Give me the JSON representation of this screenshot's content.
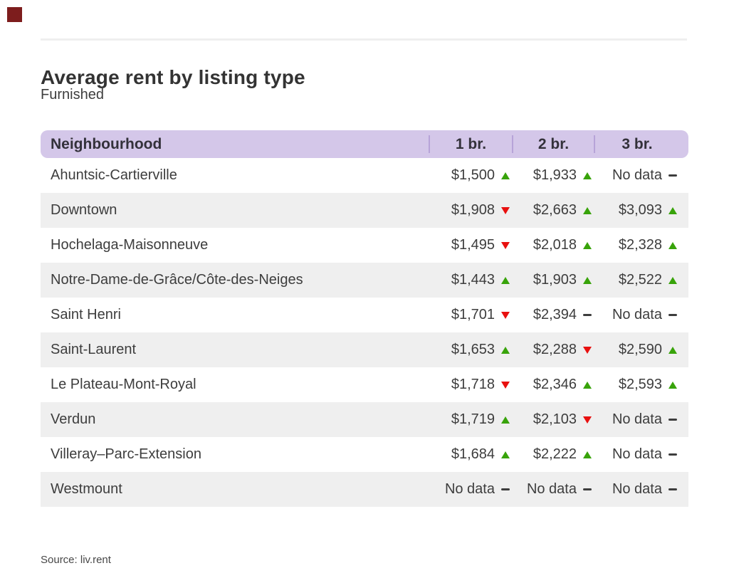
{
  "chart_data": {
    "type": "table",
    "title": "Average rent by listing type",
    "subtitle": "Furnished",
    "columns": [
      "Neighbourhood",
      "1 br.",
      "2 br.",
      "3 br."
    ],
    "no_data_text": "No data",
    "rows": [
      {
        "neighbourhood": "Ahuntsic-Cartierville",
        "values": [
          {
            "amount": "$1,500",
            "trend": "up"
          },
          {
            "amount": "$1,933",
            "trend": "up"
          },
          {
            "amount": "No data",
            "trend": "flat"
          }
        ]
      },
      {
        "neighbourhood": "Downtown",
        "values": [
          {
            "amount": "$1,908",
            "trend": "down"
          },
          {
            "amount": "$2,663",
            "trend": "up"
          },
          {
            "amount": "$3,093",
            "trend": "up"
          }
        ]
      },
      {
        "neighbourhood": "Hochelaga-Maisonneuve",
        "values": [
          {
            "amount": "$1,495",
            "trend": "down"
          },
          {
            "amount": "$2,018",
            "trend": "up"
          },
          {
            "amount": "$2,328",
            "trend": "up"
          }
        ]
      },
      {
        "neighbourhood": "Notre-Dame-de-Grâce/Côte-des-Neiges",
        "values": [
          {
            "amount": "$1,443",
            "trend": "up"
          },
          {
            "amount": "$1,903",
            "trend": "up"
          },
          {
            "amount": "$2,522",
            "trend": "up"
          }
        ]
      },
      {
        "neighbourhood": "Saint Henri",
        "values": [
          {
            "amount": "$1,701",
            "trend": "down"
          },
          {
            "amount": "$2,394",
            "trend": "flat"
          },
          {
            "amount": "No data",
            "trend": "flat"
          }
        ]
      },
      {
        "neighbourhood": "Saint-Laurent",
        "values": [
          {
            "amount": "$1,653",
            "trend": "up"
          },
          {
            "amount": "$2,288",
            "trend": "down"
          },
          {
            "amount": "$2,590",
            "trend": "up"
          }
        ]
      },
      {
        "neighbourhood": "Le Plateau-Mont-Royal",
        "values": [
          {
            "amount": "$1,718",
            "trend": "down"
          },
          {
            "amount": "$2,346",
            "trend": "up"
          },
          {
            "amount": "$2,593",
            "trend": "up"
          }
        ]
      },
      {
        "neighbourhood": "Verdun",
        "values": [
          {
            "amount": "$1,719",
            "trend": "up"
          },
          {
            "amount": "$2,103",
            "trend": "down"
          },
          {
            "amount": "No data",
            "trend": "flat"
          }
        ]
      },
      {
        "neighbourhood": "Villeray–Parc-Extension",
        "values": [
          {
            "amount": "$1,684",
            "trend": "up"
          },
          {
            "amount": "$2,222",
            "trend": "up"
          },
          {
            "amount": "No data",
            "trend": "flat"
          }
        ]
      },
      {
        "neighbourhood": "Westmount",
        "values": [
          {
            "amount": "No data",
            "trend": "flat"
          },
          {
            "amount": "No data",
            "trend": "flat"
          },
          {
            "amount": "No data",
            "trend": "flat"
          }
        ]
      }
    ],
    "legend_position": "none",
    "grid": "zebra-stripes"
  },
  "footer": {
    "source": "Source: liv.rent"
  },
  "icons": {
    "trend-up-icon": "▲",
    "trend-down-icon": "▼",
    "trend-flat-icon": "–"
  },
  "colors": {
    "marker": "#7d1d1d",
    "hairline": "#efefef",
    "header_bg": "#d4c7e9",
    "header_divider": "#b7a3d8",
    "stripe": "#efefef",
    "up": "#38a30a",
    "down": "#e8100f",
    "text": "#3d3d3d"
  }
}
